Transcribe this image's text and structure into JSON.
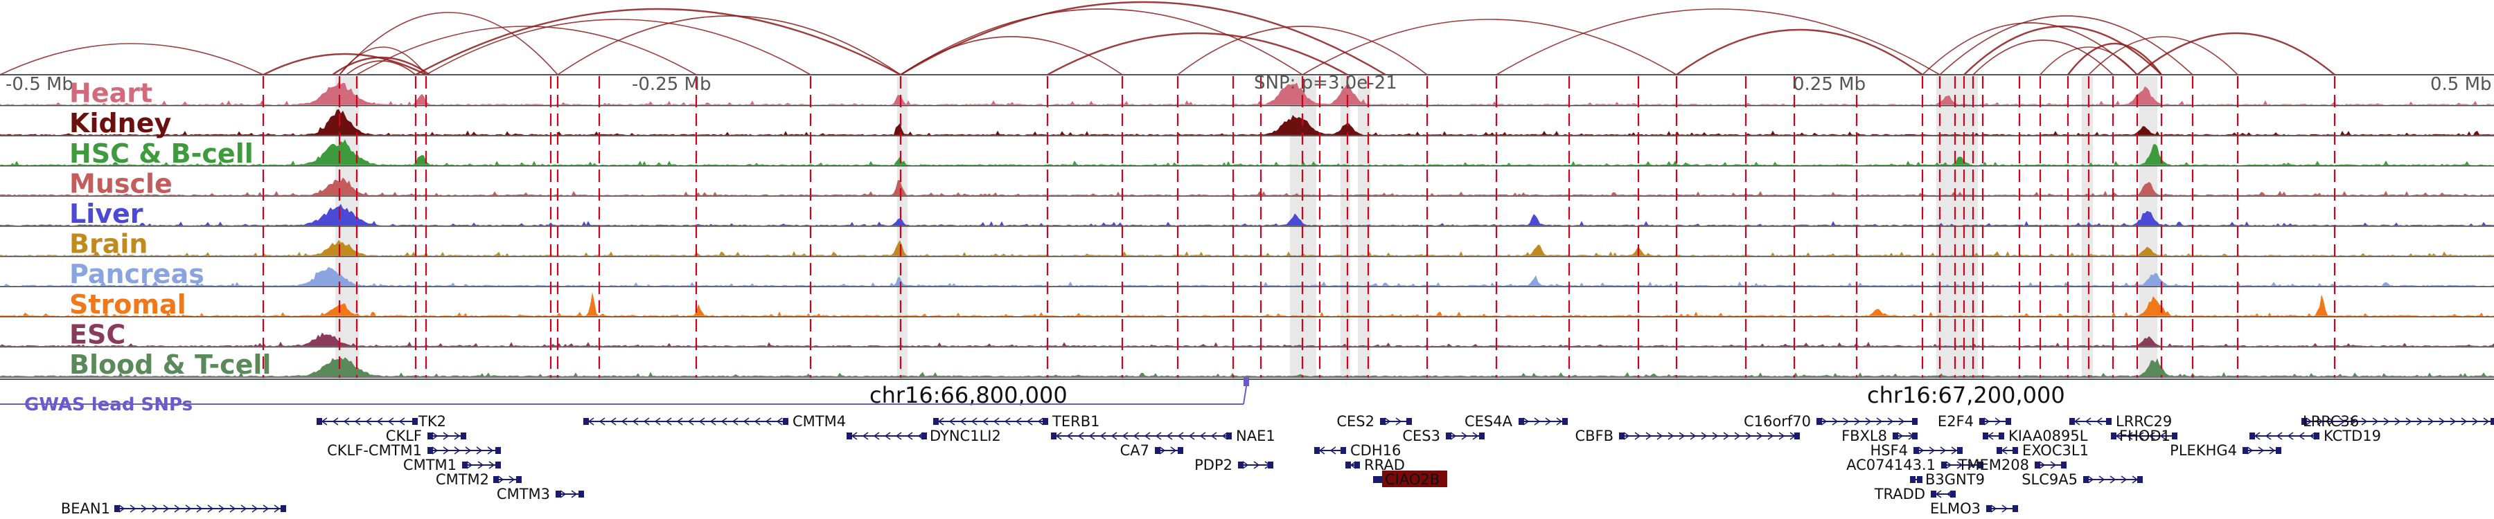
{
  "figure": {
    "axis_labels": [
      "-0.5 Mb",
      "-0.25 Mb",
      "SNP: p=3.0e-21",
      "0.25 Mb",
      "0.5 Mb"
    ],
    "coordinates": [
      "chr16:66,800,000",
      "chr16:67,200,000"
    ],
    "gwas_label": "GWAS lead SNPs",
    "loop_color": "#8b1a1a",
    "highlight_color": "#d9d9d9",
    "marker_color": "#d0021b"
  },
  "tracks": [
    {
      "name": "Heart",
      "color": "#d16a7a"
    },
    {
      "name": "Kidney",
      "color": "#6b0f0f"
    },
    {
      "name": "HSC & B-cell",
      "color": "#3d9a3d"
    },
    {
      "name": "Muscle",
      "color": "#c45c5c"
    },
    {
      "name": "Liver",
      "color": "#4a4ad6"
    },
    {
      "name": "Brain",
      "color": "#c08a1e"
    },
    {
      "name": "Pancreas",
      "color": "#8aa4e0"
    },
    {
      "name": "Stromal",
      "color": "#f07818"
    },
    {
      "name": "ESC",
      "color": "#8a3a5a"
    },
    {
      "name": "Blood & T-cell",
      "color": "#5a8a5a"
    }
  ],
  "genes": [
    {
      "name": "TK2",
      "strand": "-"
    },
    {
      "name": "CKLF",
      "strand": "+"
    },
    {
      "name": "CKLF-CMTM1",
      "strand": "+"
    },
    {
      "name": "CMTM1",
      "strand": "+"
    },
    {
      "name": "CMTM2",
      "strand": "+"
    },
    {
      "name": "CMTM3",
      "strand": "+"
    },
    {
      "name": "BEAN1",
      "strand": "+"
    },
    {
      "name": "CMTM4",
      "strand": "-"
    },
    {
      "name": "DYNC1LI2",
      "strand": "-"
    },
    {
      "name": "TERB1",
      "strand": "-"
    },
    {
      "name": "NAE1",
      "strand": "-"
    },
    {
      "name": "CA7",
      "strand": "+"
    },
    {
      "name": "PDP2",
      "strand": "+"
    },
    {
      "name": "CES2",
      "strand": "+"
    },
    {
      "name": "CES3",
      "strand": "+"
    },
    {
      "name": "CES4A",
      "strand": "+"
    },
    {
      "name": "CDH16",
      "strand": "-"
    },
    {
      "name": "RRAD",
      "strand": "-"
    },
    {
      "name": "CIAO2B",
      "strand": "-",
      "highlight": true
    },
    {
      "name": "CBFB",
      "strand": "+"
    },
    {
      "name": "C16orf70",
      "strand": "+"
    },
    {
      "name": "FBXL8",
      "strand": "+"
    },
    {
      "name": "HSF4",
      "strand": "+"
    },
    {
      "name": "AC074143.1",
      "strand": "+"
    },
    {
      "name": "B3GNT9",
      "strand": "-"
    },
    {
      "name": "TRADD",
      "strand": "-"
    },
    {
      "name": "E2F4",
      "strand": "+"
    },
    {
      "name": "KIAA0895L",
      "strand": "-"
    },
    {
      "name": "EXOC3L1",
      "strand": "-"
    },
    {
      "name": "TMEM208",
      "strand": "+"
    },
    {
      "name": "ELMO3",
      "strand": "+"
    },
    {
      "name": "LRRC29",
      "strand": "-"
    },
    {
      "name": "FHOD1",
      "strand": "-"
    },
    {
      "name": "SLC9A5",
      "strand": "+"
    },
    {
      "name": "PLEKHG4",
      "strand": "+"
    },
    {
      "name": "LRRC36",
      "strand": "+"
    },
    {
      "name": "KCTD19",
      "strand": "-"
    }
  ]
}
